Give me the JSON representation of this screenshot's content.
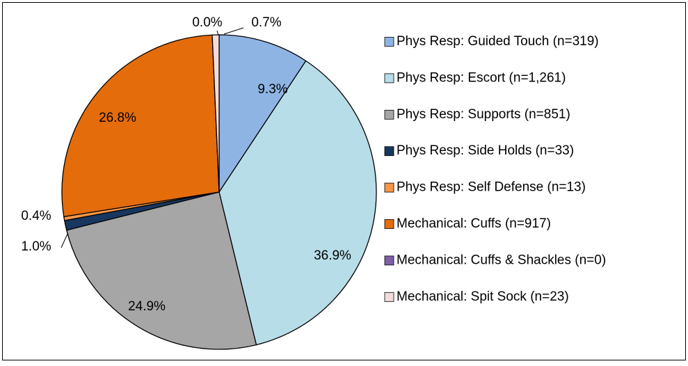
{
  "chart_data": {
    "type": "pie",
    "categories": [
      "Phys Resp: Guided Touch (n=319)",
      "Phys Resp: Escort (n=1,261)",
      "Phys Resp: Supports (n=851)",
      "Phys Resp: Side Holds (n=33)",
      "Phys Resp: Self Defense (n=13)",
      "Mechanical: Cuffs (n=917)",
      "Mechanical: Cuffs & Shackles (n=0)",
      "Mechanical: Spit Sock (n=23)"
    ],
    "values": [
      9.3,
      36.9,
      24.9,
      1.0,
      0.4,
      26.8,
      0.0,
      0.7
    ],
    "value_labels": [
      "9.3%",
      "36.9%",
      "24.9%",
      "1.0%",
      "0.4%",
      "26.8%",
      "0.0%",
      "0.7%"
    ],
    "colors": [
      "#8eb4e3",
      "#b7dde8",
      "#a6a6a6",
      "#17375e",
      "#f79646",
      "#e46c0a",
      "#7f5fa8",
      "#f2dcdb"
    ],
    "legend": "right"
  }
}
